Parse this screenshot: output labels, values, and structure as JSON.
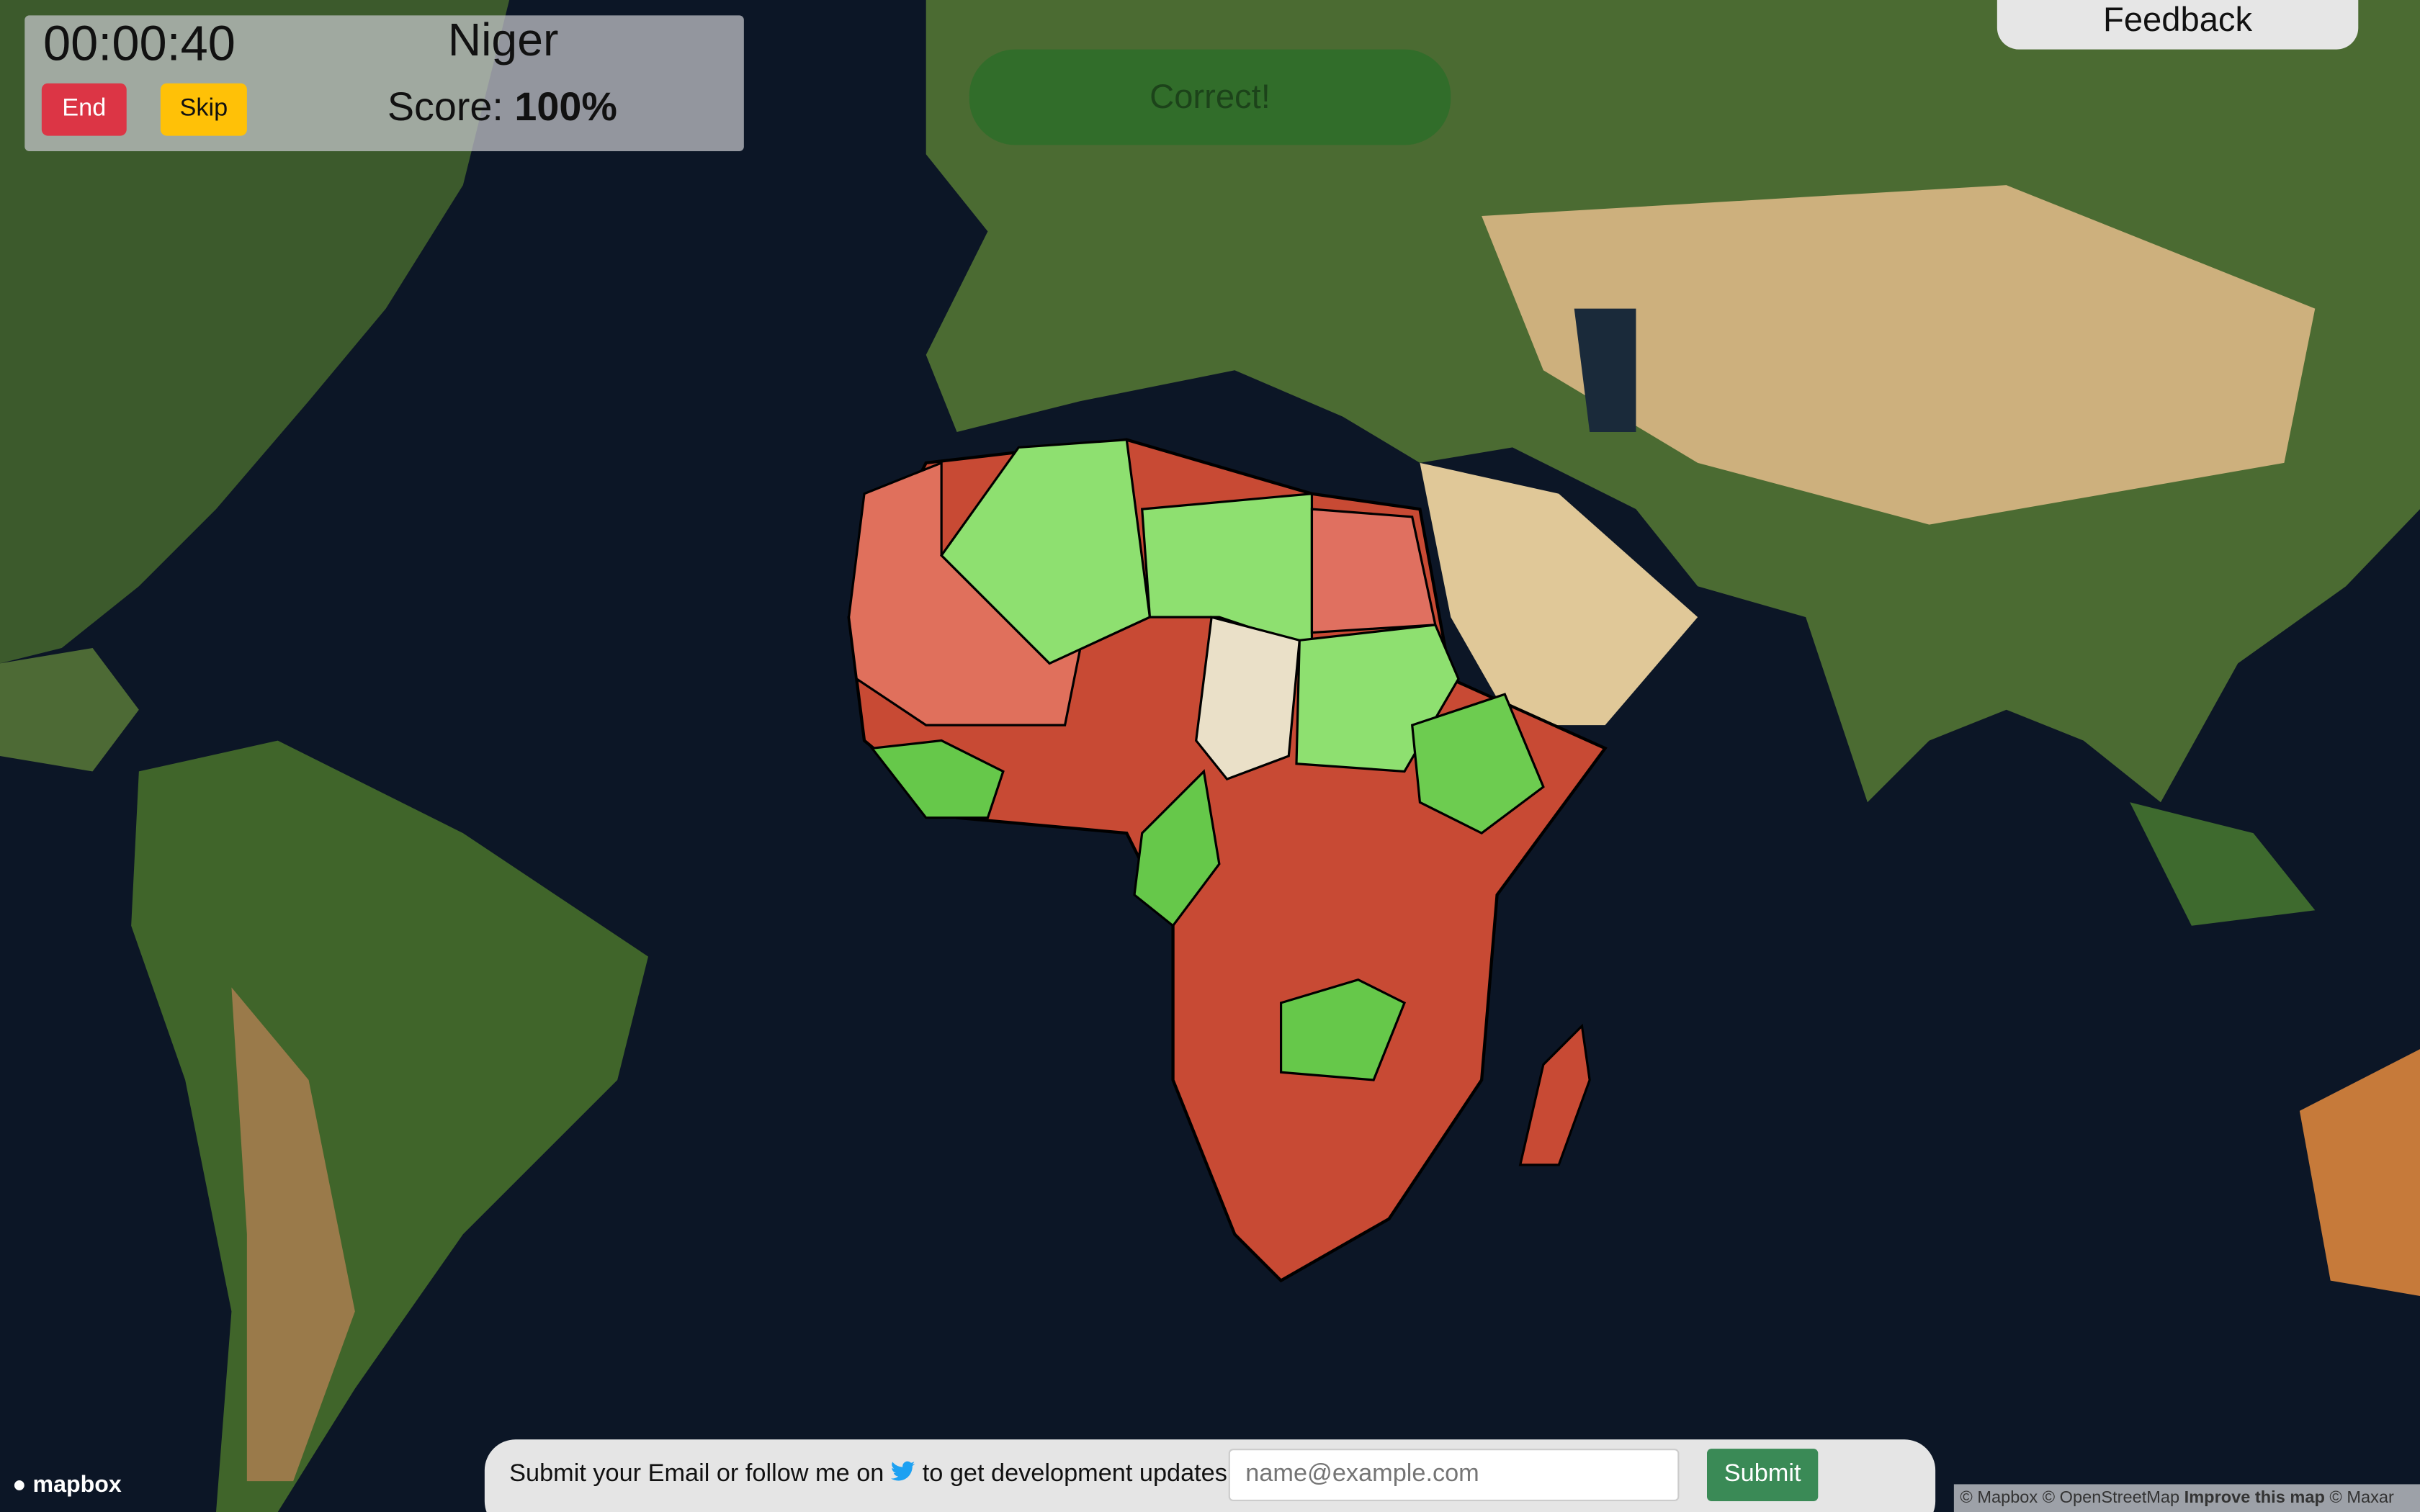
{
  "header": {
    "timer": "00:00:40",
    "target": "Niger",
    "score_label": "Score:",
    "score_value": "100%",
    "end_button": "End",
    "skip_button": "Skip"
  },
  "toast": "Correct!",
  "feedback_button": "Feedback",
  "footer": {
    "text_before": "Submit your Email or follow me on",
    "text_after": "to get development updates",
    "email_placeholder": "name@example.com",
    "submit_button": "Submit"
  },
  "map": {
    "logo": "mapbox",
    "attribution": [
      "© Mapbox",
      "© OpenStreetMap",
      "Improve this map",
      "© Maxar"
    ]
  }
}
